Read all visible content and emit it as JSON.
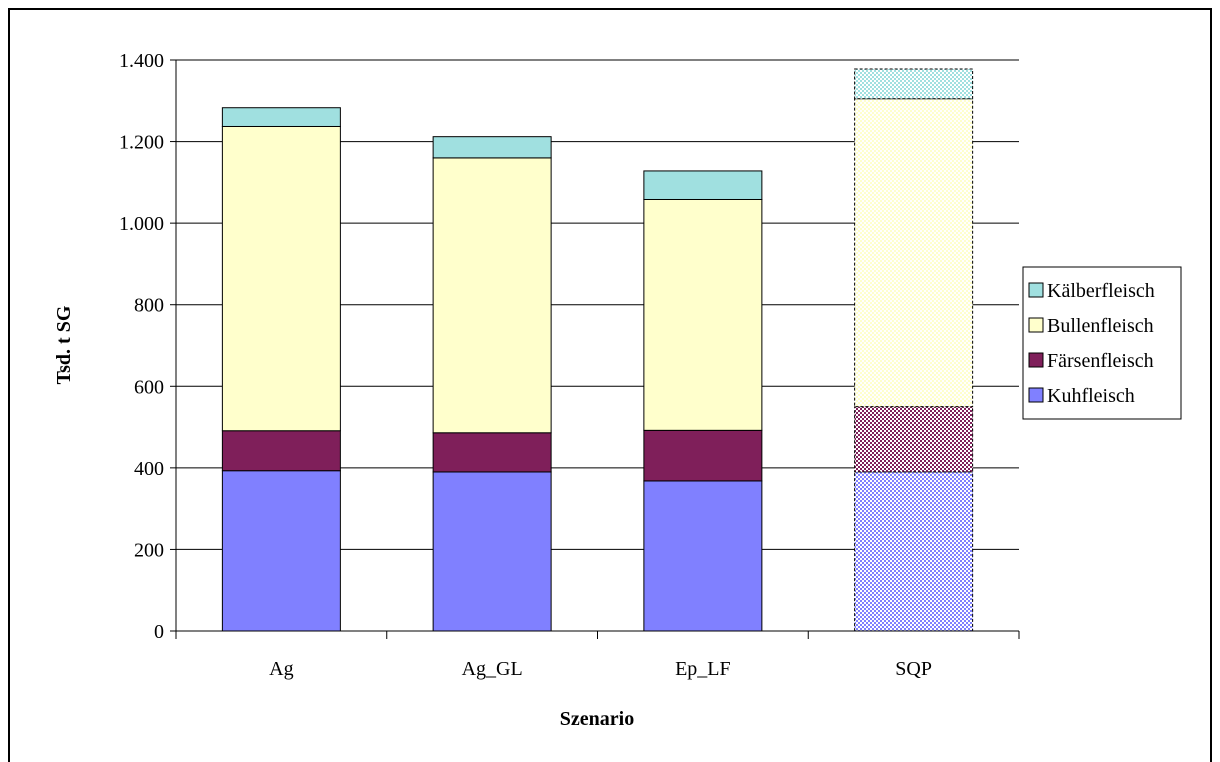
{
  "chart_data": {
    "type": "bar",
    "stacked": true,
    "categories": [
      "Ag",
      "Ag_GL",
      "Ep_LF",
      "SQP"
    ],
    "series": [
      {
        "name": "Kuhfleisch",
        "values": [
          393,
          390,
          368,
          390
        ],
        "color": "#8080ff"
      },
      {
        "name": "Färsenfleisch",
        "values": [
          98,
          96,
          124,
          160
        ],
        "color": "#7f1f5a"
      },
      {
        "name": "Bullenfleisch",
        "values": [
          746,
          674,
          566,
          755
        ],
        "color": "#ffffcc"
      },
      {
        "name": "Kälberfleisch",
        "values": [
          46,
          52,
          70,
          73
        ],
        "color": "#a0e0e0"
      }
    ],
    "pattern_categories": [
      "SQP"
    ],
    "xlabel": "Szenario",
    "ylabel": "Tsd. t SG",
    "ylim": [
      0,
      1400
    ],
    "yticks": [
      0,
      200,
      400,
      600,
      800,
      1000,
      1200,
      1400
    ],
    "ytick_labels": [
      "0",
      "200",
      "400",
      "600",
      "800",
      "1.000",
      "1.200",
      "1.400"
    ],
    "grid": true,
    "legend_position": "right",
    "legend_order": [
      "Kälberfleisch",
      "Bullenfleisch",
      "Färsenfleisch",
      "Kuhfleisch"
    ]
  }
}
